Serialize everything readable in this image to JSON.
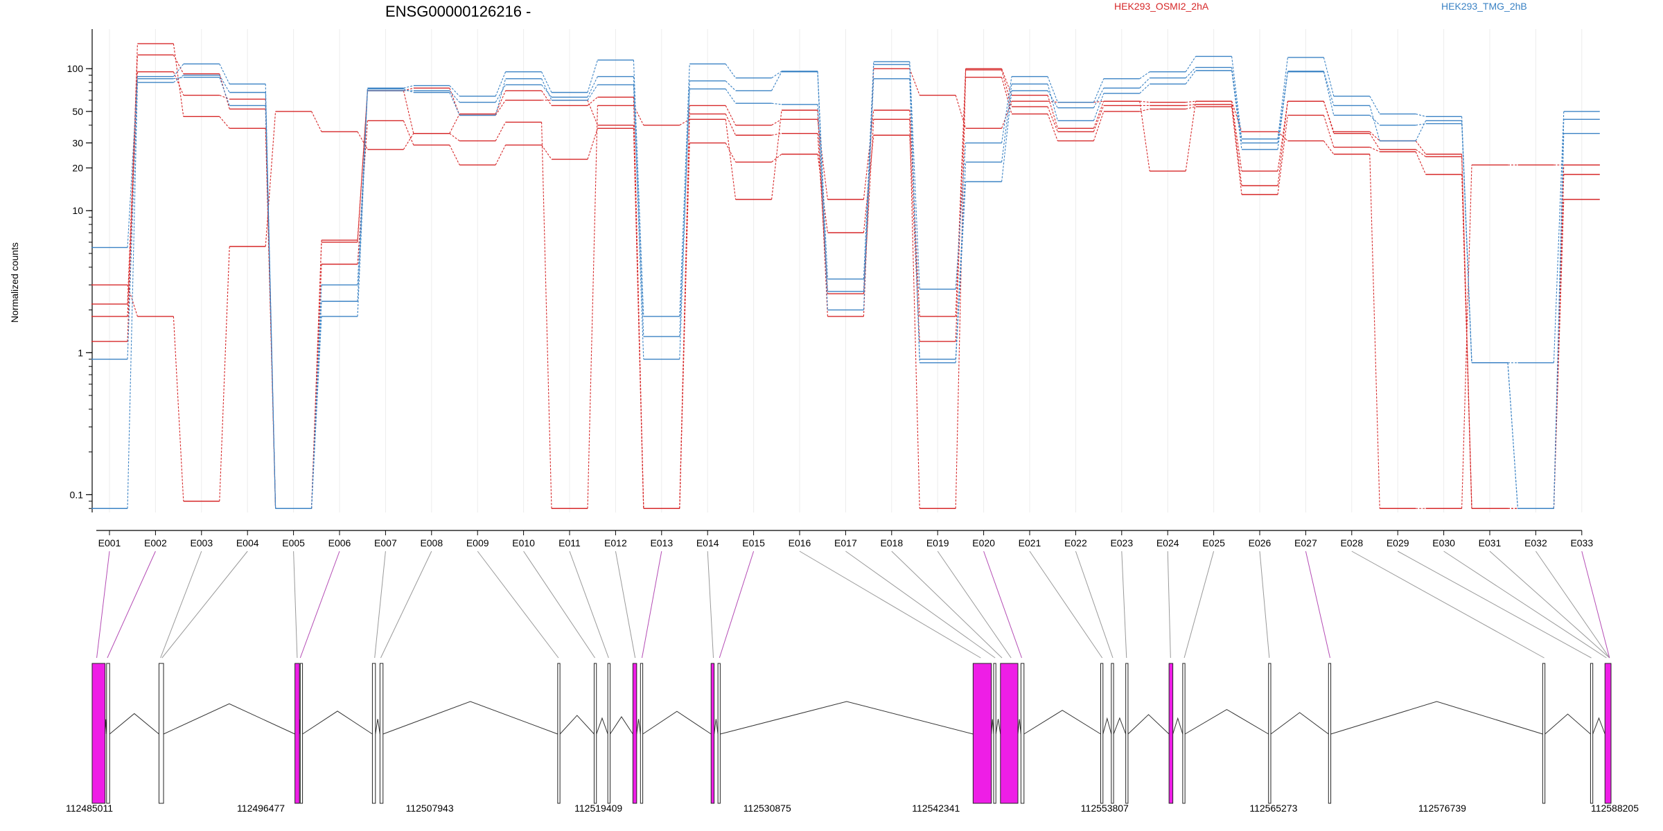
{
  "chart_data": {
    "type": "line",
    "title": "ENSG00000126216 -",
    "ylabel": "Normalized counts",
    "yscale": "log",
    "ylim": [
      0.075,
      190
    ],
    "yticks": [
      0.1,
      1,
      10,
      20,
      30,
      50,
      100
    ],
    "ytick_labels": [
      "0.1",
      "1",
      "10",
      "20",
      "30",
      "50",
      "100"
    ],
    "categories": [
      "E001",
      "E002",
      "E003",
      "E004",
      "E005",
      "E006",
      "E007",
      "E008",
      "E009",
      "E010",
      "E011",
      "E012",
      "E013",
      "E014",
      "E015",
      "E016",
      "E017",
      "E018",
      "E019",
      "E020",
      "E021",
      "E022",
      "E023",
      "E024",
      "E025",
      "E026",
      "E027",
      "E028",
      "E029",
      "E030",
      "E031",
      "E032",
      "E033"
    ],
    "legend": [
      {
        "name": "HEK293_OSMI2_2hA",
        "color": "#d62728"
      },
      {
        "name": "HEK293_TMG_2hB",
        "color": "#3a82c4"
      }
    ],
    "series": [
      {
        "group": "HEK293_OSMI2_2hA",
        "color": "#d62728",
        "values": [
          3.0,
          1.8,
          0.09,
          5.6,
          50,
          36,
          27,
          35,
          31,
          42,
          0.08,
          55,
          40,
          44,
          12,
          51,
          1.8,
          100,
          65,
          38,
          59,
          58,
          59,
          19,
          59,
          36,
          31,
          25,
          0.08,
          0.08,
          21,
          21,
          21
        ]
      },
      {
        "group": "HEK293_OSMI2_2hA",
        "color": "#d62728",
        "values": [
          1.8,
          95,
          65,
          61,
          0.08,
          4.2,
          43,
          29,
          21,
          29,
          23,
          38,
          0.08,
          30,
          22,
          25,
          7,
          34,
          1.2,
          87,
          48,
          31,
          50,
          52,
          54,
          13,
          47,
          28,
          26,
          18,
          0.08,
          0.08,
          12
        ]
      },
      {
        "group": "HEK293_OSMI2_2hA",
        "color": "#d62728",
        "values": [
          1.2,
          150,
          46,
          38,
          0.08,
          6.0,
          70,
          35,
          48,
          70,
          55,
          63,
          0.08,
          48,
          34,
          35,
          2.6,
          44,
          0.08,
          98,
          54,
          36,
          55,
          55,
          56,
          15,
          59,
          35,
          27,
          24,
          0.08,
          0.08,
          18
        ]
      },
      {
        "group": "HEK293_OSMI2_2hA",
        "color": "#d62728",
        "values": [
          2.2,
          125,
          92,
          52,
          0.08,
          6.2,
          70,
          73,
          47,
          60,
          60,
          40,
          0.08,
          55,
          40,
          44,
          12,
          51,
          1.8,
          100,
          65,
          38,
          59,
          58,
          59,
          19,
          59,
          36,
          31,
          25,
          0.08,
          0.08,
          21
        ]
      },
      {
        "group": "HEK293_TMG_2hB",
        "color": "#3a82c4",
        "values": [
          5.5,
          88,
          108,
          78,
          0.08,
          3.0,
          73,
          76,
          64,
          95,
          68,
          115,
          1.8,
          108,
          86,
          96,
          3.3,
          112,
          2.8,
          30,
          88,
          58,
          85,
          95,
          122,
          32,
          120,
          64,
          48,
          46,
          0.85,
          0.85,
          50
        ]
      },
      {
        "group": "HEK293_TMG_2hB",
        "color": "#3a82c4",
        "values": [
          0.9,
          85,
          87,
          55,
          0.08,
          2.3,
          70,
          70,
          58,
          77,
          63,
          88,
          1.3,
          72,
          57,
          56,
          2.7,
          85,
          0.9,
          22,
          78,
          43,
          67,
          78,
          97,
          27,
          95,
          47,
          40,
          41,
          0.85,
          0.08,
          35
        ]
      },
      {
        "group": "HEK293_TMG_2hB",
        "color": "#3a82c4",
        "values": [
          0.08,
          80,
          90,
          68,
          0.08,
          1.8,
          72,
          68,
          47,
          85,
          60,
          77,
          0.9,
          82,
          70,
          95,
          2.0,
          107,
          0.85,
          16,
          70,
          53,
          73,
          86,
          102,
          30,
          96,
          55,
          31,
          43,
          0.85,
          0.08,
          44
        ]
      }
    ],
    "genomic_axis": {
      "ticks": [
        "112485011",
        "112496477",
        "112507943",
        "112519409",
        "112530875",
        "112542341",
        "112553807",
        "112565273",
        "112576739",
        "112588205"
      ],
      "exons_highlighted": [
        "E001",
        "E002",
        "E006",
        "E013",
        "E015",
        "E020",
        "E027",
        "E033"
      ]
    }
  }
}
